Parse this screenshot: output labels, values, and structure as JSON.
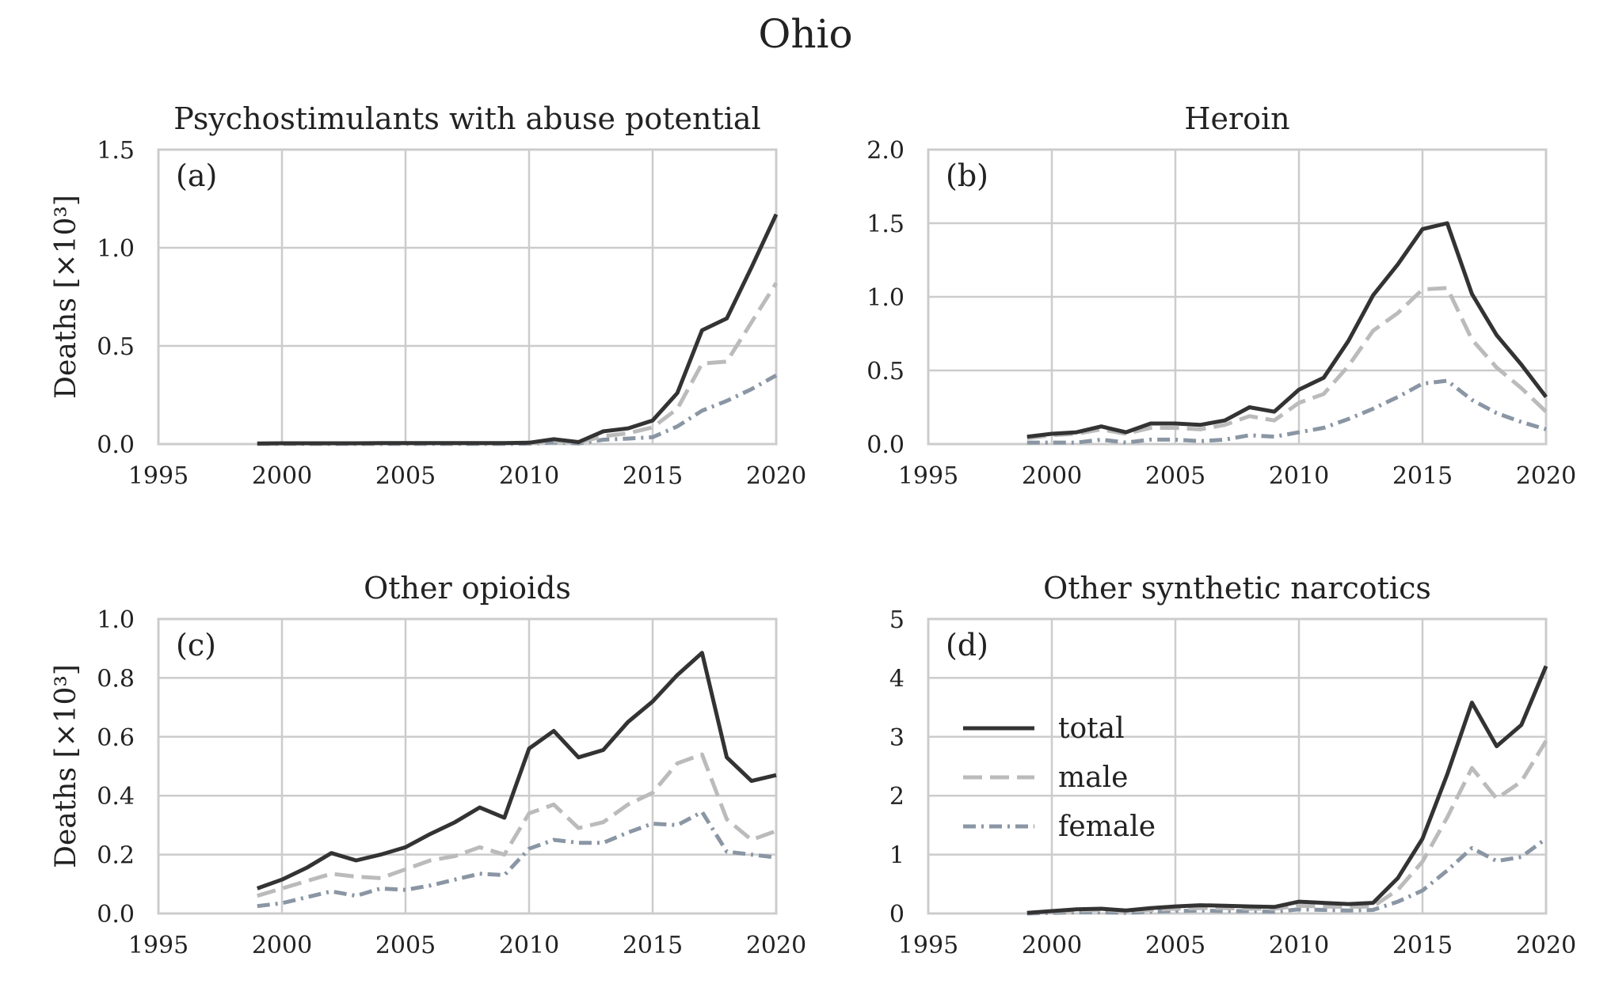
{
  "figure_title": "Ohio",
  "colors": {
    "total": "#333333",
    "male": "#bbbbbb",
    "female": "#8a96a4",
    "grid": "#cccccc",
    "axes": "#cccccc"
  },
  "chart_data": [
    {
      "type": "line",
      "panel_label": "(a)",
      "title": "Psychostimulants with abuse potential",
      "xlabel": "",
      "ylabel": "Deaths [×10³]",
      "xlim": [
        1995,
        2020
      ],
      "ylim": [
        0,
        1.5
      ],
      "xticks": [
        1995,
        2000,
        2005,
        2010,
        2015,
        2020
      ],
      "yticks": [
        "0.0",
        "0.5",
        "1.0",
        "1.5"
      ],
      "grid": true,
      "x": [
        1999,
        2000,
        2001,
        2002,
        2003,
        2004,
        2005,
        2006,
        2007,
        2008,
        2009,
        2010,
        2011,
        2012,
        2013,
        2014,
        2015,
        2016,
        2017,
        2018,
        2019,
        2020
      ],
      "series": [
        {
          "name": "total",
          "values": [
            0.003,
            0.004,
            0.004,
            0.004,
            0.004,
            0.005,
            0.005,
            0.005,
            0.005,
            0.005,
            0.005,
            0.007,
            0.025,
            0.01,
            0.065,
            0.08,
            0.12,
            0.26,
            0.58,
            0.64,
            0.9,
            1.17
          ]
        },
        {
          "name": "male",
          "values": [
            0.002,
            0.003,
            0.003,
            0.003,
            0.003,
            0.004,
            0.004,
            0.004,
            0.004,
            0.004,
            0.004,
            0.005,
            0.015,
            0.008,
            0.04,
            0.055,
            0.085,
            0.18,
            0.41,
            0.42,
            0.62,
            0.82
          ]
        },
        {
          "name": "female",
          "values": [
            0.001,
            0.001,
            0.001,
            0.001,
            0.001,
            0.001,
            0.001,
            0.001,
            0.001,
            0.001,
            0.001,
            0.002,
            0.008,
            0.003,
            0.022,
            0.028,
            0.035,
            0.09,
            0.17,
            0.22,
            0.28,
            0.35
          ]
        }
      ]
    },
    {
      "type": "line",
      "panel_label": "(b)",
      "title": "Heroin",
      "xlabel": "",
      "ylabel": "",
      "xlim": [
        1995,
        2020
      ],
      "ylim": [
        0,
        2.0
      ],
      "xticks": [
        1995,
        2000,
        2005,
        2010,
        2015,
        2020
      ],
      "yticks": [
        "0.0",
        "0.5",
        "1.0",
        "1.5",
        "2.0"
      ],
      "grid": true,
      "x": [
        1999,
        2000,
        2001,
        2002,
        2003,
        2004,
        2005,
        2006,
        2007,
        2008,
        2009,
        2010,
        2011,
        2012,
        2013,
        2014,
        2015,
        2016,
        2017,
        2018,
        2019,
        2020
      ],
      "series": [
        {
          "name": "total",
          "values": [
            0.05,
            0.07,
            0.08,
            0.12,
            0.08,
            0.14,
            0.14,
            0.13,
            0.16,
            0.25,
            0.22,
            0.37,
            0.45,
            0.7,
            1.01,
            1.22,
            1.46,
            1.5,
            1.02,
            0.74,
            0.54,
            0.32
          ]
        },
        {
          "name": "male",
          "values": [
            0.04,
            0.06,
            0.07,
            0.1,
            0.07,
            0.11,
            0.11,
            0.1,
            0.13,
            0.19,
            0.16,
            0.28,
            0.34,
            0.53,
            0.77,
            0.89,
            1.05,
            1.06,
            0.71,
            0.52,
            0.38,
            0.22
          ]
        },
        {
          "name": "female",
          "values": [
            0.01,
            0.01,
            0.01,
            0.03,
            0.01,
            0.03,
            0.03,
            0.02,
            0.03,
            0.06,
            0.05,
            0.08,
            0.11,
            0.17,
            0.24,
            0.32,
            0.41,
            0.43,
            0.3,
            0.21,
            0.15,
            0.1
          ]
        }
      ]
    },
    {
      "type": "line",
      "panel_label": "(c)",
      "title": "Other opioids",
      "xlabel": "",
      "ylabel": "Deaths [×10³]",
      "xlim": [
        1995,
        2020
      ],
      "ylim": [
        0,
        1.0
      ],
      "xticks": [
        1995,
        2000,
        2005,
        2010,
        2015,
        2020
      ],
      "yticks": [
        "0.0",
        "0.2",
        "0.4",
        "0.6",
        "0.8",
        "1.0"
      ],
      "grid": true,
      "x": [
        1999,
        2000,
        2001,
        2002,
        2003,
        2004,
        2005,
        2006,
        2007,
        2008,
        2009,
        2010,
        2011,
        2012,
        2013,
        2014,
        2015,
        2016,
        2017,
        2018,
        2019,
        2020
      ],
      "series": [
        {
          "name": "total",
          "values": [
            0.085,
            0.115,
            0.155,
            0.205,
            0.18,
            0.2,
            0.225,
            0.27,
            0.31,
            0.36,
            0.325,
            0.56,
            0.62,
            0.53,
            0.555,
            0.65,
            0.72,
            0.81,
            0.885,
            0.53,
            0.45,
            0.47
          ]
        },
        {
          "name": "male",
          "values": [
            0.06,
            0.085,
            0.11,
            0.135,
            0.125,
            0.12,
            0.15,
            0.18,
            0.195,
            0.225,
            0.2,
            0.34,
            0.37,
            0.29,
            0.31,
            0.37,
            0.41,
            0.51,
            0.54,
            0.32,
            0.25,
            0.28
          ]
        },
        {
          "name": "female",
          "values": [
            0.025,
            0.035,
            0.055,
            0.075,
            0.06,
            0.085,
            0.08,
            0.095,
            0.115,
            0.135,
            0.13,
            0.22,
            0.25,
            0.24,
            0.24,
            0.275,
            0.305,
            0.3,
            0.345,
            0.21,
            0.2,
            0.19
          ]
        }
      ]
    },
    {
      "type": "line",
      "panel_label": "(d)",
      "title": "Other synthetic narcotics",
      "xlabel": "",
      "ylabel": "",
      "xlim": [
        1995,
        2020
      ],
      "ylim": [
        0,
        5
      ],
      "xticks": [
        1995,
        2000,
        2005,
        2010,
        2015,
        2020
      ],
      "yticks": [
        "0",
        "1",
        "2",
        "3",
        "4",
        "5"
      ],
      "grid": true,
      "legend": {
        "placement": "center-left",
        "entries": [
          "total",
          "male",
          "female"
        ]
      },
      "x": [
        1999,
        2000,
        2001,
        2002,
        2003,
        2004,
        2005,
        2006,
        2007,
        2008,
        2009,
        2010,
        2011,
        2012,
        2013,
        2014,
        2015,
        2016,
        2017,
        2018,
        2019,
        2020
      ],
      "series": [
        {
          "name": "total",
          "values": [
            0.01,
            0.04,
            0.07,
            0.08,
            0.05,
            0.09,
            0.12,
            0.14,
            0.13,
            0.12,
            0.11,
            0.2,
            0.18,
            0.16,
            0.18,
            0.6,
            1.27,
            2.36,
            3.58,
            2.84,
            3.2,
            4.2
          ]
        },
        {
          "name": "male",
          "values": [
            0.01,
            0.03,
            0.05,
            0.06,
            0.04,
            0.06,
            0.08,
            0.09,
            0.09,
            0.08,
            0.08,
            0.13,
            0.12,
            0.11,
            0.12,
            0.4,
            0.88,
            1.63,
            2.47,
            1.95,
            2.24,
            2.93
          ]
        },
        {
          "name": "female",
          "values": [
            0.0,
            0.01,
            0.02,
            0.02,
            0.01,
            0.03,
            0.04,
            0.05,
            0.04,
            0.04,
            0.03,
            0.07,
            0.06,
            0.05,
            0.06,
            0.2,
            0.39,
            0.73,
            1.11,
            0.89,
            0.96,
            1.27
          ]
        }
      ]
    }
  ]
}
